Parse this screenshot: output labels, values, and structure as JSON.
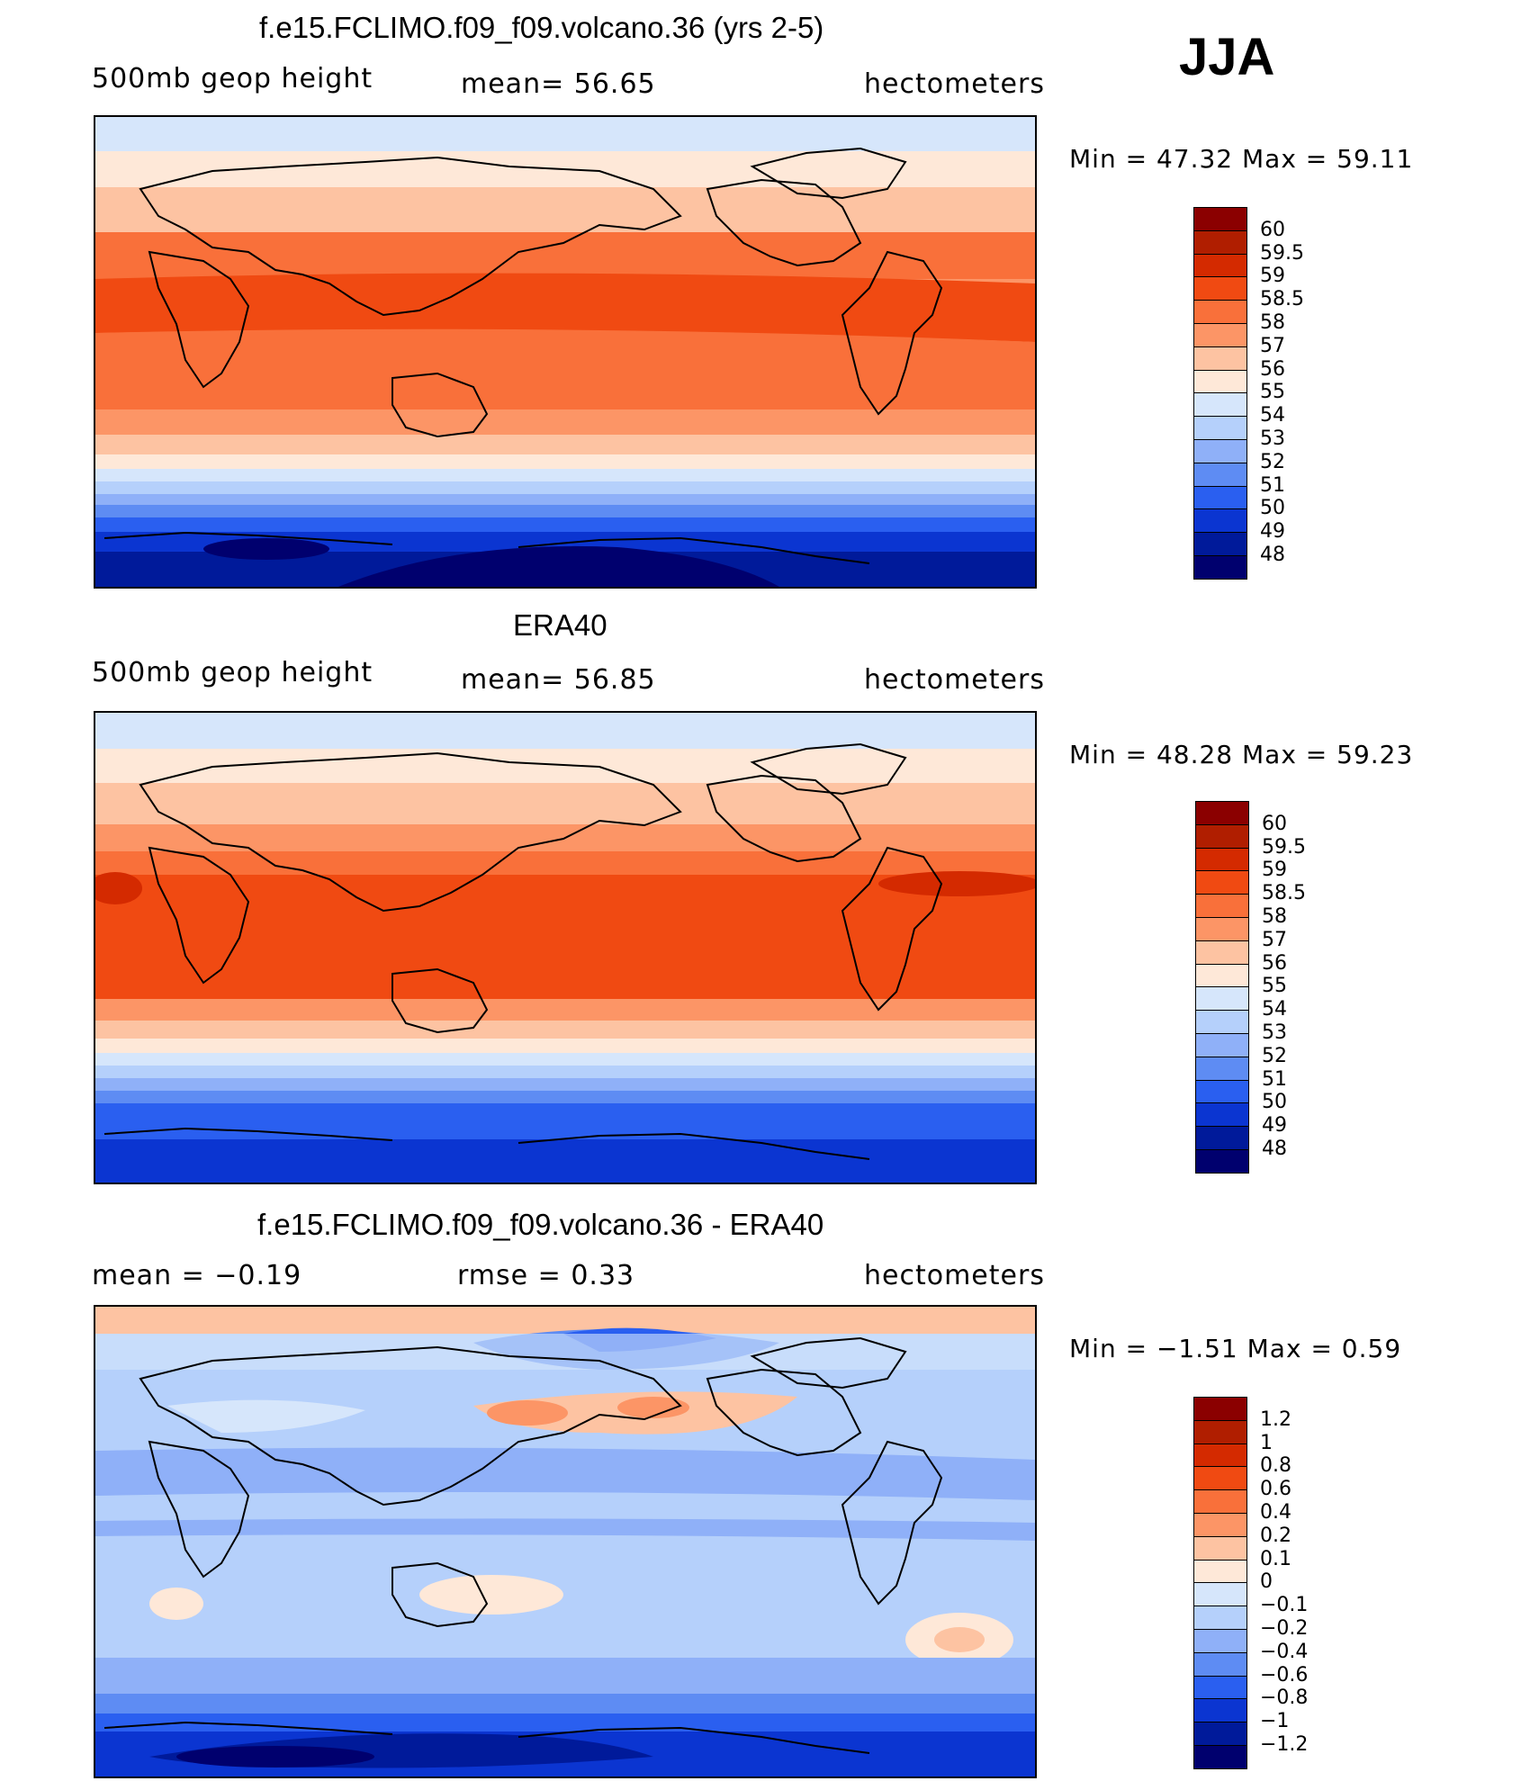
{
  "season": "JJA",
  "panels": [
    {
      "id": "model",
      "title": "f.e15.FCLIMO.f09_f09.volcano.36 (yrs 2-5)",
      "left_label": "500mb geop height",
      "middle_label": "mean=   56.65",
      "right_label": "hectometers",
      "minmax": "Min =   47.32  Max =   59.11",
      "legend_labels": [
        "60",
        "59.5",
        "59",
        "58.5",
        "58",
        "57",
        "56",
        "55",
        "54",
        "53",
        "52",
        "51",
        "50",
        "49",
        "48"
      ],
      "legend_colors": [
        "#8b0000",
        "#b01e00",
        "#d42a00",
        "#f04a12",
        "#f9703a",
        "#fc9566",
        "#fdc3a2",
        "#fee8d8",
        "#d6e6fb",
        "#b5d0fb",
        "#8fb0f8",
        "#5e8cf3",
        "#2a5ff0",
        "#0b35d1",
        "#001a9a",
        "#00006e"
      ]
    },
    {
      "id": "obs",
      "title": "ERA40",
      "left_label": "500mb geop height",
      "middle_label": "mean=   56.85",
      "right_label": "hectometers",
      "minmax": "Min =   48.28  Max =   59.23",
      "legend_labels": [
        "60",
        "59.5",
        "59",
        "58.5",
        "58",
        "57",
        "56",
        "55",
        "54",
        "53",
        "52",
        "51",
        "50",
        "49",
        "48"
      ],
      "legend_colors": [
        "#8b0000",
        "#b01e00",
        "#d42a00",
        "#f04a12",
        "#f9703a",
        "#fc9566",
        "#fdc3a2",
        "#fee8d8",
        "#d6e6fb",
        "#b5d0fb",
        "#8fb0f8",
        "#5e8cf3",
        "#2a5ff0",
        "#0b35d1",
        "#001a9a",
        "#00006e"
      ]
    },
    {
      "id": "diff",
      "title": "f.e15.FCLIMO.f09_f09.volcano.36 - ERA40",
      "left_label": "mean =   −0.19",
      "middle_label": "rmse =    0.33",
      "right_label": "hectometers",
      "minmax": "Min =   −1.51  Max =     0.59",
      "legend_labels": [
        "1.2",
        "1",
        "0.8",
        "0.6",
        "0.4",
        "0.2",
        "0.1",
        "0",
        "−0.1",
        "−0.2",
        "−0.4",
        "−0.6",
        "−0.8",
        "−1",
        "−1.2"
      ],
      "legend_colors": [
        "#8b0000",
        "#b01e00",
        "#d42a00",
        "#f04a12",
        "#f9703a",
        "#fc9566",
        "#fdc3a2",
        "#fee8d8",
        "#d6e6fb",
        "#b5d0fb",
        "#8fb0f8",
        "#5e8cf3",
        "#2a5ff0",
        "#0b35d1",
        "#001a9a",
        "#00006e"
      ]
    }
  ]
}
